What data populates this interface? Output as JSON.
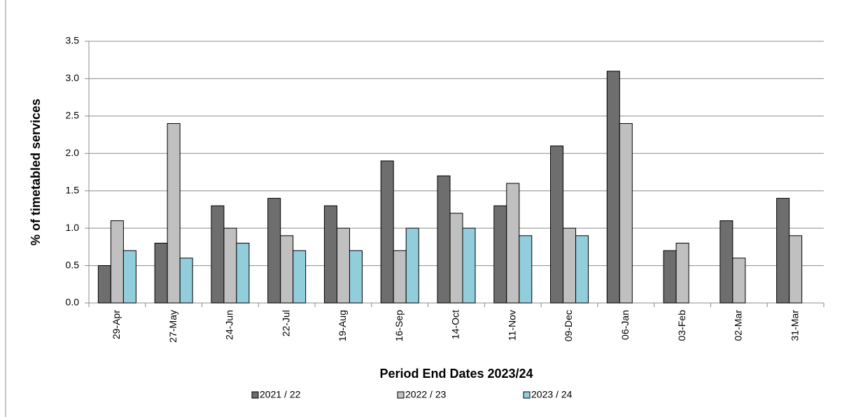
{
  "chart_data": {
    "type": "bar",
    "x_label": "Period End Dates 2023/24",
    "y_label": "% of timetabled services",
    "categories": [
      "29-Apr",
      "27-May",
      "24-Jun",
      "22-Jul",
      "19-Aug",
      "16-Sep",
      "14-Oct",
      "11-Nov",
      "09-Dec",
      "06-Jan",
      "03-Feb",
      "02-Mar",
      "31-Mar"
    ],
    "series": [
      {
        "name": "2021 / 22",
        "color": "#6e6e6e",
        "values": [
          0.5,
          0.8,
          1.3,
          1.4,
          1.3,
          1.9,
          1.7,
          1.3,
          2.1,
          3.1,
          0.7,
          1.1,
          1.4
        ]
      },
      {
        "name": "2022 / 23",
        "color": "#c0c0c0",
        "values": [
          1.1,
          2.4,
          1.0,
          0.9,
          1.0,
          0.7,
          1.2,
          1.6,
          1.0,
          2.4,
          0.8,
          0.6,
          0.9
        ]
      },
      {
        "name": "2023 / 24",
        "color": "#92cddc",
        "values": [
          0.7,
          0.6,
          0.8,
          0.7,
          0.7,
          1.0,
          1.0,
          0.9,
          0.9,
          null,
          null,
          null,
          null
        ]
      }
    ],
    "ylim": [
      0,
      3.5
    ],
    "yticks": [
      {
        "value": 0,
        "label": "0.0"
      },
      0.5,
      {
        "value": 1,
        "label": "1.0"
      },
      1.5,
      {
        "value": 2,
        "label": "2.0"
      },
      2.5,
      {
        "value": 3,
        "label": "3.0"
      },
      3.5
    ],
    "grid": true,
    "legend": "bottom"
  }
}
